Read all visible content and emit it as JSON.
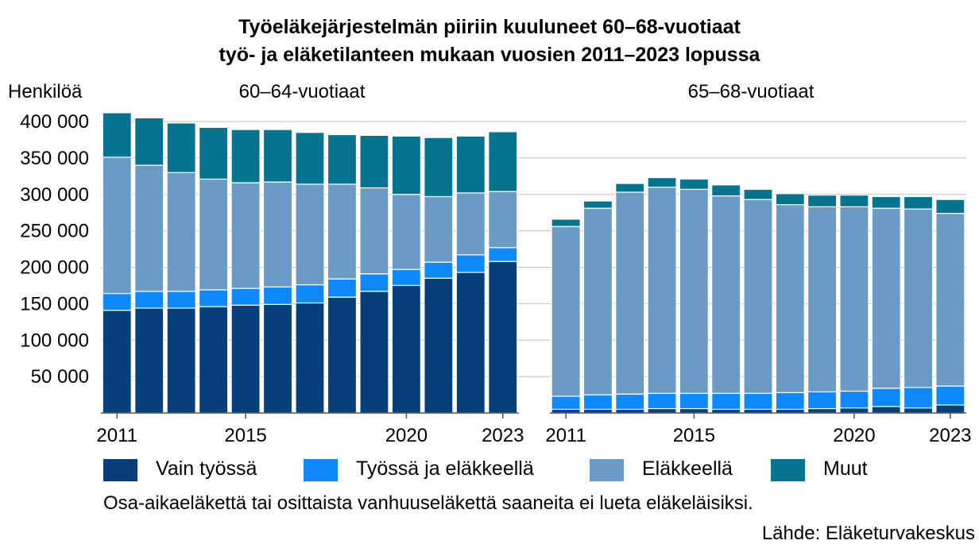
{
  "chart_data": {
    "type": "bar",
    "stacked": true,
    "title": "Työeläkejärjestelmän piiriin kuuluneet 60–68-vuotiaat",
    "subtitle": "työ- ja eläketilanteen mukaan vuosien 2011–2023 lopussa",
    "ylabel": "Henkilöä",
    "ylim": [
      0,
      400000
    ],
    "yticks": [
      "50 000",
      "100 000",
      "150 000",
      "200 000",
      "250 000",
      "300 000",
      "350 000",
      "400 000"
    ],
    "ytick_values": [
      50000,
      100000,
      150000,
      200000,
      250000,
      300000,
      350000,
      400000
    ],
    "grid": true,
    "legend_position": "bottom",
    "categories": [
      "2011",
      "2012",
      "2013",
      "2014",
      "2015",
      "2016",
      "2017",
      "2018",
      "2019",
      "2020",
      "2021",
      "2022",
      "2023"
    ],
    "xtick_labels": [
      "2011",
      "2015",
      "2020",
      "2023"
    ],
    "panels": [
      {
        "label": "60–64-vuotiaat",
        "series": [
          {
            "name": "Vain työssä",
            "color": "#063f7a",
            "values": [
              141000,
              144000,
              144000,
              146000,
              148000,
              149000,
              151000,
              159000,
              167000,
              175000,
              185000,
              193000,
              208000
            ]
          },
          {
            "name": "Työssä ja eläkkeellä",
            "color": "#0d89fb",
            "values": [
              23000,
              23000,
              23000,
              23000,
              23000,
              24000,
              25000,
              25000,
              24000,
              22000,
              22000,
              24000,
              19000
            ]
          },
          {
            "name": "Eläkkeellä",
            "color": "#6b9ac4",
            "values": [
              187000,
              173000,
              163000,
              152000,
              145000,
              144000,
              138000,
              130000,
              118000,
              103000,
              90000,
              85000,
              77000
            ]
          },
          {
            "name": "Muut",
            "color": "#06738f",
            "values": [
              61000,
              65000,
              68000,
              71000,
              73000,
              72000,
              71000,
              68000,
              72000,
              80000,
              81000,
              78000,
              82000
            ]
          }
        ]
      },
      {
        "label": "65–68-vuotiaat",
        "series": [
          {
            "name": "Vain työssä",
            "color": "#063f7a",
            "values": [
              5000,
              5000,
              5000,
              6000,
              6000,
              5000,
              5000,
              5000,
              6000,
              7000,
              9000,
              7000,
              11000
            ]
          },
          {
            "name": "Työssä ja eläkkeellä",
            "color": "#0d89fb",
            "values": [
              18000,
              20000,
              21000,
              21000,
              21000,
              22000,
              22000,
              23000,
              23000,
              23000,
              25000,
              28000,
              26000
            ]
          },
          {
            "name": "Eläkkeellä",
            "color": "#6b9ac4",
            "values": [
              233000,
              256000,
              277000,
              283000,
              280000,
              271000,
              266000,
              258000,
              254000,
              253000,
              247000,
              245000,
              237000
            ]
          },
          {
            "name": "Muut",
            "color": "#06738f",
            "values": [
              10000,
              10000,
              12000,
              13000,
              14000,
              15000,
              14000,
              15000,
              16000,
              16000,
              16000,
              17000,
              19000
            ]
          }
        ]
      }
    ]
  },
  "legend": {
    "items": [
      {
        "label": "Vain työssä",
        "color": "#063f7a"
      },
      {
        "label": "Työssä ja eläkkeellä",
        "color": "#0d89fb"
      },
      {
        "label": "Eläkkeellä",
        "color": "#6b9ac4"
      },
      {
        "label": "Muut",
        "color": "#06738f"
      }
    ]
  },
  "note": "Osa-aikaeläkettä tai osittaista vanhuuseläkettä saaneita ei lueta eläkeläisiksi.",
  "source": "Lähde: Eläketurvakeskus"
}
